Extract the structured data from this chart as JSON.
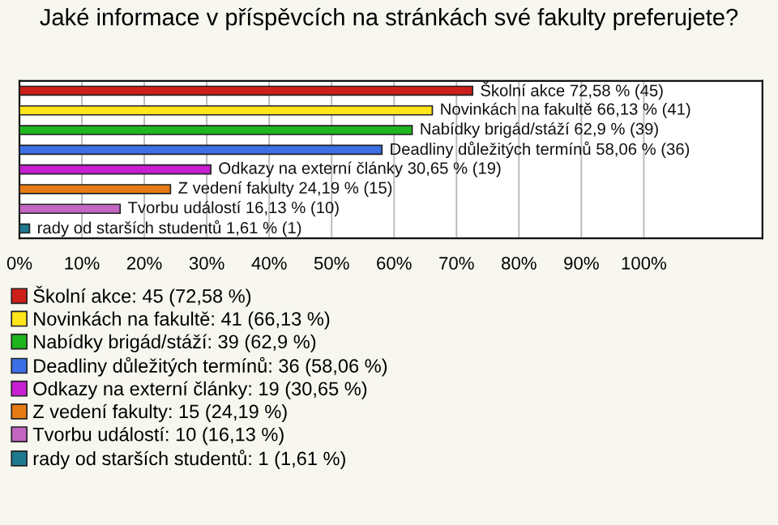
{
  "chart_data": {
    "type": "bar",
    "orientation": "horizontal",
    "title": "Jaké informace v příspěvcích na stránkách své fakulty preferujete?",
    "categories": [
      null,
      null,
      null,
      null,
      null,
      null,
      null,
      null
    ],
    "series": [
      {
        "name": "Školní akce: 45 (72,58 %)",
        "color": "#cc1f1a",
        "values": [
          72.58,
          null,
          null,
          null,
          null,
          null,
          null,
          null
        ],
        "value_labels": [
          "Školní akce 72,58 % (45)",
          null,
          null,
          null,
          null,
          null,
          null,
          null
        ]
      },
      {
        "name": "Novinkách na fakultě: 41 (66,13 %)",
        "color": "#ffe51a",
        "values": [
          null,
          66.13,
          null,
          null,
          null,
          null,
          null,
          null
        ],
        "value_labels": [
          null,
          "Novinkách na fakultě 66,13 % (41)",
          null,
          null,
          null,
          null,
          null,
          null
        ]
      },
      {
        "name": "Nabídky brigád/stáží: 39 (62,9 %)",
        "color": "#1fb51f",
        "values": [
          null,
          null,
          62.9,
          null,
          null,
          null,
          null,
          null
        ],
        "value_labels": [
          null,
          null,
          "Nabídky brigád/stáží 62,9 % (39)",
          null,
          null,
          null,
          null,
          null
        ]
      },
      {
        "name": "Deadliny důležitých termínů: 36 (58,06 %)",
        "color": "#3d6fe6",
        "values": [
          null,
          null,
          null,
          58.06,
          null,
          null,
          null,
          null
        ],
        "value_labels": [
          null,
          null,
          null,
          "Deadliny důležitých termínů 58,06 % (36)",
          null,
          null,
          null,
          null
        ]
      },
      {
        "name": "Odkazy na externí články: 19 (30,65 %)",
        "color": "#c71fd1",
        "values": [
          null,
          null,
          null,
          null,
          30.65,
          null,
          null,
          null
        ],
        "value_labels": [
          null,
          null,
          null,
          null,
          "Odkazy na externí články 30,65 % (19)",
          null,
          null,
          null
        ]
      },
      {
        "name": "Z vedení fakulty: 15 (24,19 %)",
        "color": "#e67a14",
        "values": [
          null,
          null,
          null,
          null,
          null,
          24.19,
          null,
          null
        ],
        "value_labels": [
          null,
          null,
          null,
          null,
          null,
          "Z vedení fakulty 24,19 % (15)",
          null,
          null
        ]
      },
      {
        "name": "Tvorbu událostí: 10 (16,13 %)",
        "color": "#c266c2",
        "values": [
          null,
          null,
          null,
          null,
          null,
          null,
          16.13,
          null
        ],
        "value_labels": [
          null,
          null,
          null,
          null,
          null,
          null,
          "Tvorbu událostí 16,13 % (10)",
          null
        ]
      },
      {
        "name": "rady od starších studentů: 1 (1,61 %)",
        "color": "#1f7a8f",
        "values": [
          null,
          null,
          null,
          null,
          null,
          null,
          null,
          1.61
        ],
        "value_labels": [
          null,
          null,
          null,
          null,
          null,
          null,
          null,
          "rady od starších studentů 1,61 % (1)"
        ]
      }
    ],
    "xlim": [
      0,
      119
    ],
    "xticks": [
      {
        "value": 0,
        "label": "0%"
      },
      {
        "value": 10,
        "label": "10%"
      },
      {
        "value": 20,
        "label": "20%"
      },
      {
        "value": 30,
        "label": "30%"
      },
      {
        "value": 40,
        "label": "40%"
      },
      {
        "value": 50,
        "label": "50%"
      },
      {
        "value": 60,
        "label": "60%"
      },
      {
        "value": 70,
        "label": "70%"
      },
      {
        "value": 80,
        "label": "80%"
      },
      {
        "value": 90,
        "label": "90%"
      },
      {
        "value": 100,
        "label": "100%"
      }
    ],
    "grid": "x",
    "legend": "bottom"
  }
}
